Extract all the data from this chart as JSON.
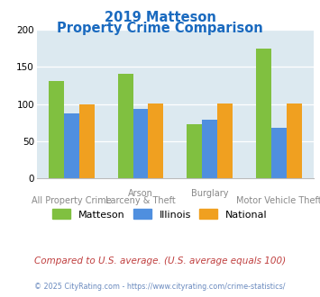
{
  "title_line1": "2019 Matteson",
  "title_line2": "Property Crime Comparison",
  "groups": [
    {
      "matteson": 131,
      "illinois": 87,
      "national": 100
    },
    {
      "matteson": 141,
      "illinois": 93,
      "national": 101
    },
    {
      "matteson": 73,
      "illinois": 79,
      "national": 101
    },
    {
      "matteson": 174,
      "illinois": 68,
      "national": 101
    }
  ],
  "colors": {
    "matteson": "#80c040",
    "illinois": "#4f8fdf",
    "national": "#f0a020"
  },
  "ylim": [
    0,
    200
  ],
  "yticks": [
    0,
    50,
    100,
    150,
    200
  ],
  "plot_bg": "#dce9f0",
  "top_xlabels": [
    [
      1,
      "Arson"
    ],
    [
      2,
      "Burglary"
    ]
  ],
  "bot_xlabels": [
    [
      0,
      "All Property Crime"
    ],
    [
      1,
      "Larceny & Theft"
    ],
    [
      3,
      "Motor Vehicle Theft"
    ]
  ],
  "legend_labels": [
    "Matteson",
    "Illinois",
    "National"
  ],
  "footer_text": "Compared to U.S. average. (U.S. average equals 100)",
  "credit_text": "© 2025 CityRating.com - https://www.cityrating.com/crime-statistics/",
  "title_color": "#1a6abf",
  "footer_color": "#c04040",
  "credit_color": "#6a8abf"
}
